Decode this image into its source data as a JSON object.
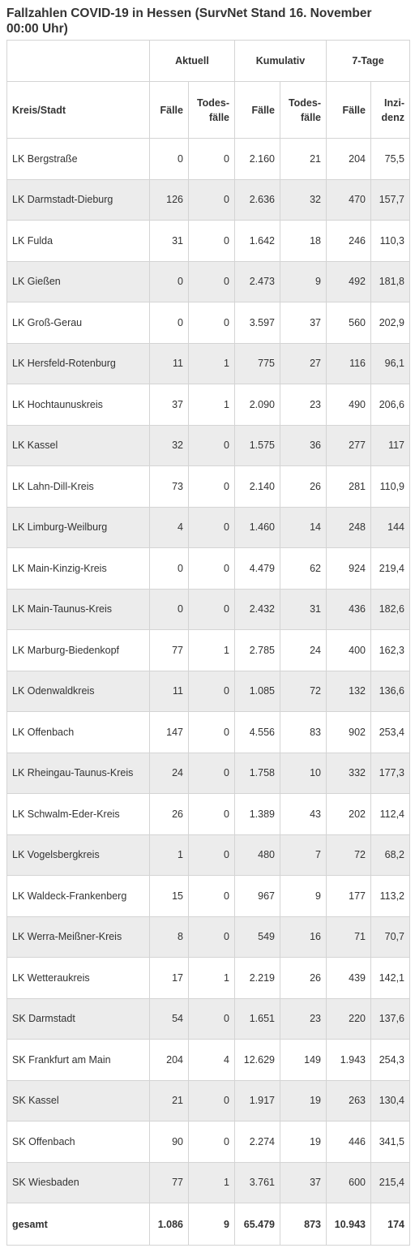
{
  "title": "Fallzahlen COVID-19 in Hessen (SurvNet Stand 16. November 00:00 Uhr)",
  "table": {
    "group_headers": [
      "Aktuell",
      "Kumulativ",
      "7-Tage"
    ],
    "column_headers": [
      "Kreis/Stadt",
      "Fälle",
      "Todes-fälle",
      "Fälle",
      "Todes-fälle",
      "Fälle",
      "Inzi-denz"
    ],
    "rows": [
      {
        "name": "LK Bergstraße",
        "akt_faelle": "0",
        "akt_tod": "0",
        "kum_faelle": "2.160",
        "kum_tod": "21",
        "t7_faelle": "204",
        "inzidenz": "75,5"
      },
      {
        "name": "LK Darmstadt-Dieburg",
        "akt_faelle": "126",
        "akt_tod": "0",
        "kum_faelle": "2.636",
        "kum_tod": "32",
        "t7_faelle": "470",
        "inzidenz": "157,7"
      },
      {
        "name": "LK Fulda",
        "akt_faelle": "31",
        "akt_tod": "0",
        "kum_faelle": "1.642",
        "kum_tod": "18",
        "t7_faelle": "246",
        "inzidenz": "110,3"
      },
      {
        "name": "LK Gießen",
        "akt_faelle": "0",
        "akt_tod": "0",
        "kum_faelle": "2.473",
        "kum_tod": "9",
        "t7_faelle": "492",
        "inzidenz": "181,8"
      },
      {
        "name": "LK Groß-Gerau",
        "akt_faelle": "0",
        "akt_tod": "0",
        "kum_faelle": "3.597",
        "kum_tod": "37",
        "t7_faelle": "560",
        "inzidenz": "202,9"
      },
      {
        "name": "LK Hersfeld-Rotenburg",
        "akt_faelle": "11",
        "akt_tod": "1",
        "kum_faelle": "775",
        "kum_tod": "27",
        "t7_faelle": "116",
        "inzidenz": "96,1"
      },
      {
        "name": "LK Hochtaunuskreis",
        "akt_faelle": "37",
        "akt_tod": "1",
        "kum_faelle": "2.090",
        "kum_tod": "23",
        "t7_faelle": "490",
        "inzidenz": "206,6"
      },
      {
        "name": "LK Kassel",
        "akt_faelle": "32",
        "akt_tod": "0",
        "kum_faelle": "1.575",
        "kum_tod": "36",
        "t7_faelle": "277",
        "inzidenz": "117"
      },
      {
        "name": "LK Lahn-Dill-Kreis",
        "akt_faelle": "73",
        "akt_tod": "0",
        "kum_faelle": "2.140",
        "kum_tod": "26",
        "t7_faelle": "281",
        "inzidenz": "110,9"
      },
      {
        "name": "LK Limburg-Weilburg",
        "akt_faelle": "4",
        "akt_tod": "0",
        "kum_faelle": "1.460",
        "kum_tod": "14",
        "t7_faelle": "248",
        "inzidenz": "144"
      },
      {
        "name": "LK Main-Kinzig-Kreis",
        "akt_faelle": "0",
        "akt_tod": "0",
        "kum_faelle": "4.479",
        "kum_tod": "62",
        "t7_faelle": "924",
        "inzidenz": "219,4"
      },
      {
        "name": "LK Main-Taunus-Kreis",
        "akt_faelle": "0",
        "akt_tod": "0",
        "kum_faelle": "2.432",
        "kum_tod": "31",
        "t7_faelle": "436",
        "inzidenz": "182,6"
      },
      {
        "name": "LK Marburg-Biedenkopf",
        "akt_faelle": "77",
        "akt_tod": "1",
        "kum_faelle": "2.785",
        "kum_tod": "24",
        "t7_faelle": "400",
        "inzidenz": "162,3"
      },
      {
        "name": "LK Odenwaldkreis",
        "akt_faelle": "11",
        "akt_tod": "0",
        "kum_faelle": "1.085",
        "kum_tod": "72",
        "t7_faelle": "132",
        "inzidenz": "136,6"
      },
      {
        "name": "LK Offenbach",
        "akt_faelle": "147",
        "akt_tod": "0",
        "kum_faelle": "4.556",
        "kum_tod": "83",
        "t7_faelle": "902",
        "inzidenz": "253,4"
      },
      {
        "name": "LK Rheingau-Taunus-Kreis",
        "akt_faelle": "24",
        "akt_tod": "0",
        "kum_faelle": "1.758",
        "kum_tod": "10",
        "t7_faelle": "332",
        "inzidenz": "177,3"
      },
      {
        "name": "LK Schwalm-Eder-Kreis",
        "akt_faelle": "26",
        "akt_tod": "0",
        "kum_faelle": "1.389",
        "kum_tod": "43",
        "t7_faelle": "202",
        "inzidenz": "112,4"
      },
      {
        "name": "LK Vogelsbergkreis",
        "akt_faelle": "1",
        "akt_tod": "0",
        "kum_faelle": "480",
        "kum_tod": "7",
        "t7_faelle": "72",
        "inzidenz": "68,2"
      },
      {
        "name": "LK Waldeck-Frankenberg",
        "akt_faelle": "15",
        "akt_tod": "0",
        "kum_faelle": "967",
        "kum_tod": "9",
        "t7_faelle": "177",
        "inzidenz": "113,2"
      },
      {
        "name": "LK Werra-Meißner-Kreis",
        "akt_faelle": "8",
        "akt_tod": "0",
        "kum_faelle": "549",
        "kum_tod": "16",
        "t7_faelle": "71",
        "inzidenz": "70,7"
      },
      {
        "name": "LK Wetteraukreis",
        "akt_faelle": "17",
        "akt_tod": "1",
        "kum_faelle": "2.219",
        "kum_tod": "26",
        "t7_faelle": "439",
        "inzidenz": "142,1"
      },
      {
        "name": "SK Darmstadt",
        "akt_faelle": "54",
        "akt_tod": "0",
        "kum_faelle": "1.651",
        "kum_tod": "23",
        "t7_faelle": "220",
        "inzidenz": "137,6"
      },
      {
        "name": "SK Frankfurt am Main",
        "akt_faelle": "204",
        "akt_tod": "4",
        "kum_faelle": "12.629",
        "kum_tod": "149",
        "t7_faelle": "1.943",
        "inzidenz": "254,3"
      },
      {
        "name": "SK Kassel",
        "akt_faelle": "21",
        "akt_tod": "0",
        "kum_faelle": "1.917",
        "kum_tod": "19",
        "t7_faelle": "263",
        "inzidenz": "130,4"
      },
      {
        "name": "SK Offenbach",
        "akt_faelle": "90",
        "akt_tod": "0",
        "kum_faelle": "2.274",
        "kum_tod": "19",
        "t7_faelle": "446",
        "inzidenz": "341,5"
      },
      {
        "name": "SK Wiesbaden",
        "akt_faelle": "77",
        "akt_tod": "1",
        "kum_faelle": "3.761",
        "kum_tod": "37",
        "t7_faelle": "600",
        "inzidenz": "215,4"
      }
    ],
    "total": {
      "name": "gesamt",
      "akt_faelle": "1.086",
      "akt_tod": "9",
      "kum_faelle": "65.479",
      "kum_tod": "873",
      "t7_faelle": "10.943",
      "inzidenz": "174"
    }
  }
}
